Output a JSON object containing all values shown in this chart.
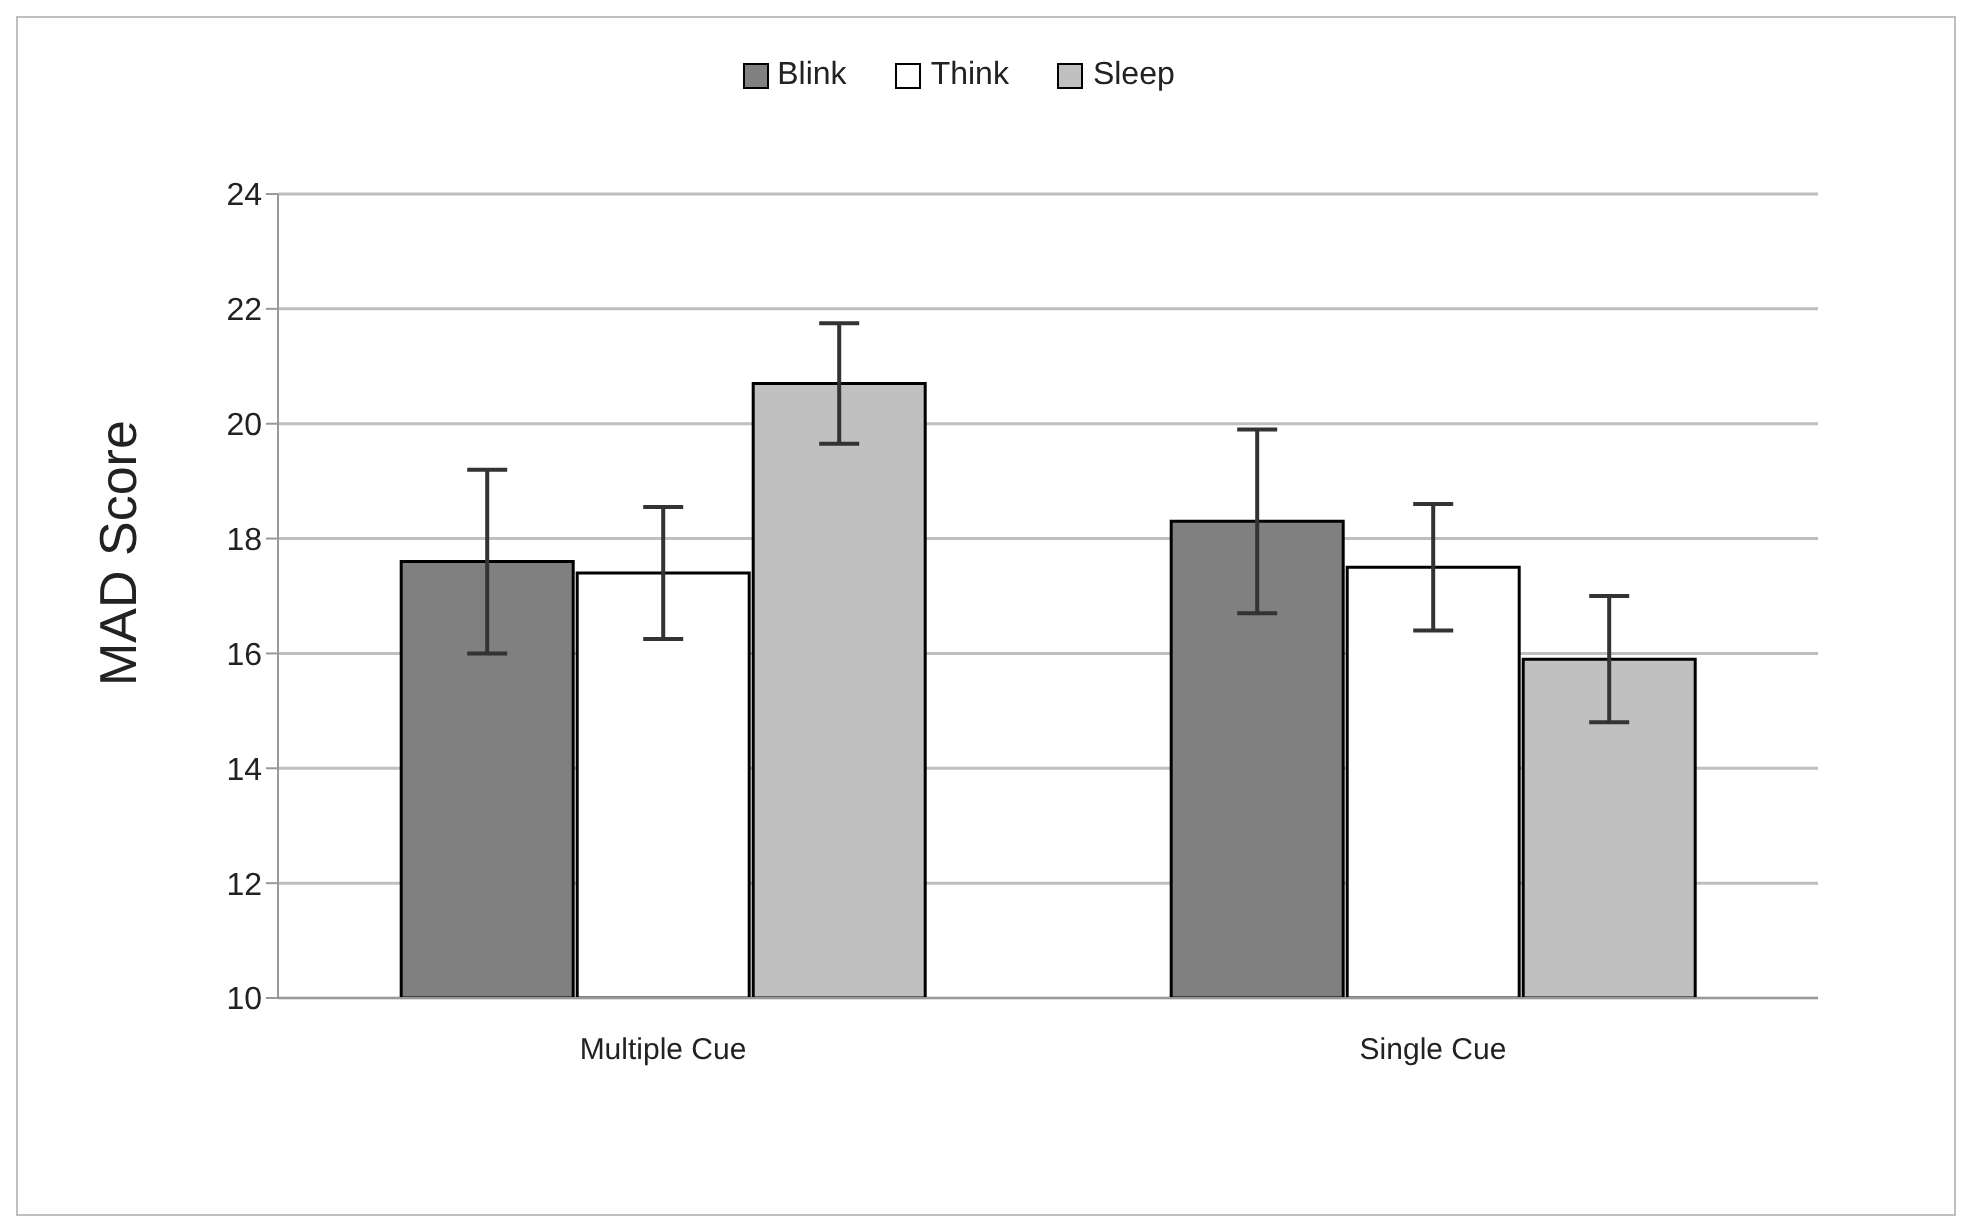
{
  "chart_data": {
    "type": "bar",
    "ylabel": "MAD Score",
    "categories": [
      "Multiple Cue",
      "Single Cue"
    ],
    "series": [
      {
        "name": "Blink",
        "color": "#808080",
        "values": [
          17.6,
          18.3
        ],
        "errors": [
          1.6,
          1.6
        ]
      },
      {
        "name": "Think",
        "color": "#ffffff",
        "values": [
          17.4,
          17.5
        ],
        "errors": [
          1.15,
          1.1
        ]
      },
      {
        "name": "Sleep",
        "color": "#c0c0c0",
        "values": [
          20.7,
          15.9
        ],
        "errors": [
          1.05,
          1.1
        ]
      }
    ],
    "ylim": [
      10,
      24
    ],
    "yticks": [
      10,
      12,
      14,
      16,
      18,
      20,
      22,
      24
    ],
    "grid": "y",
    "legend": "top"
  }
}
